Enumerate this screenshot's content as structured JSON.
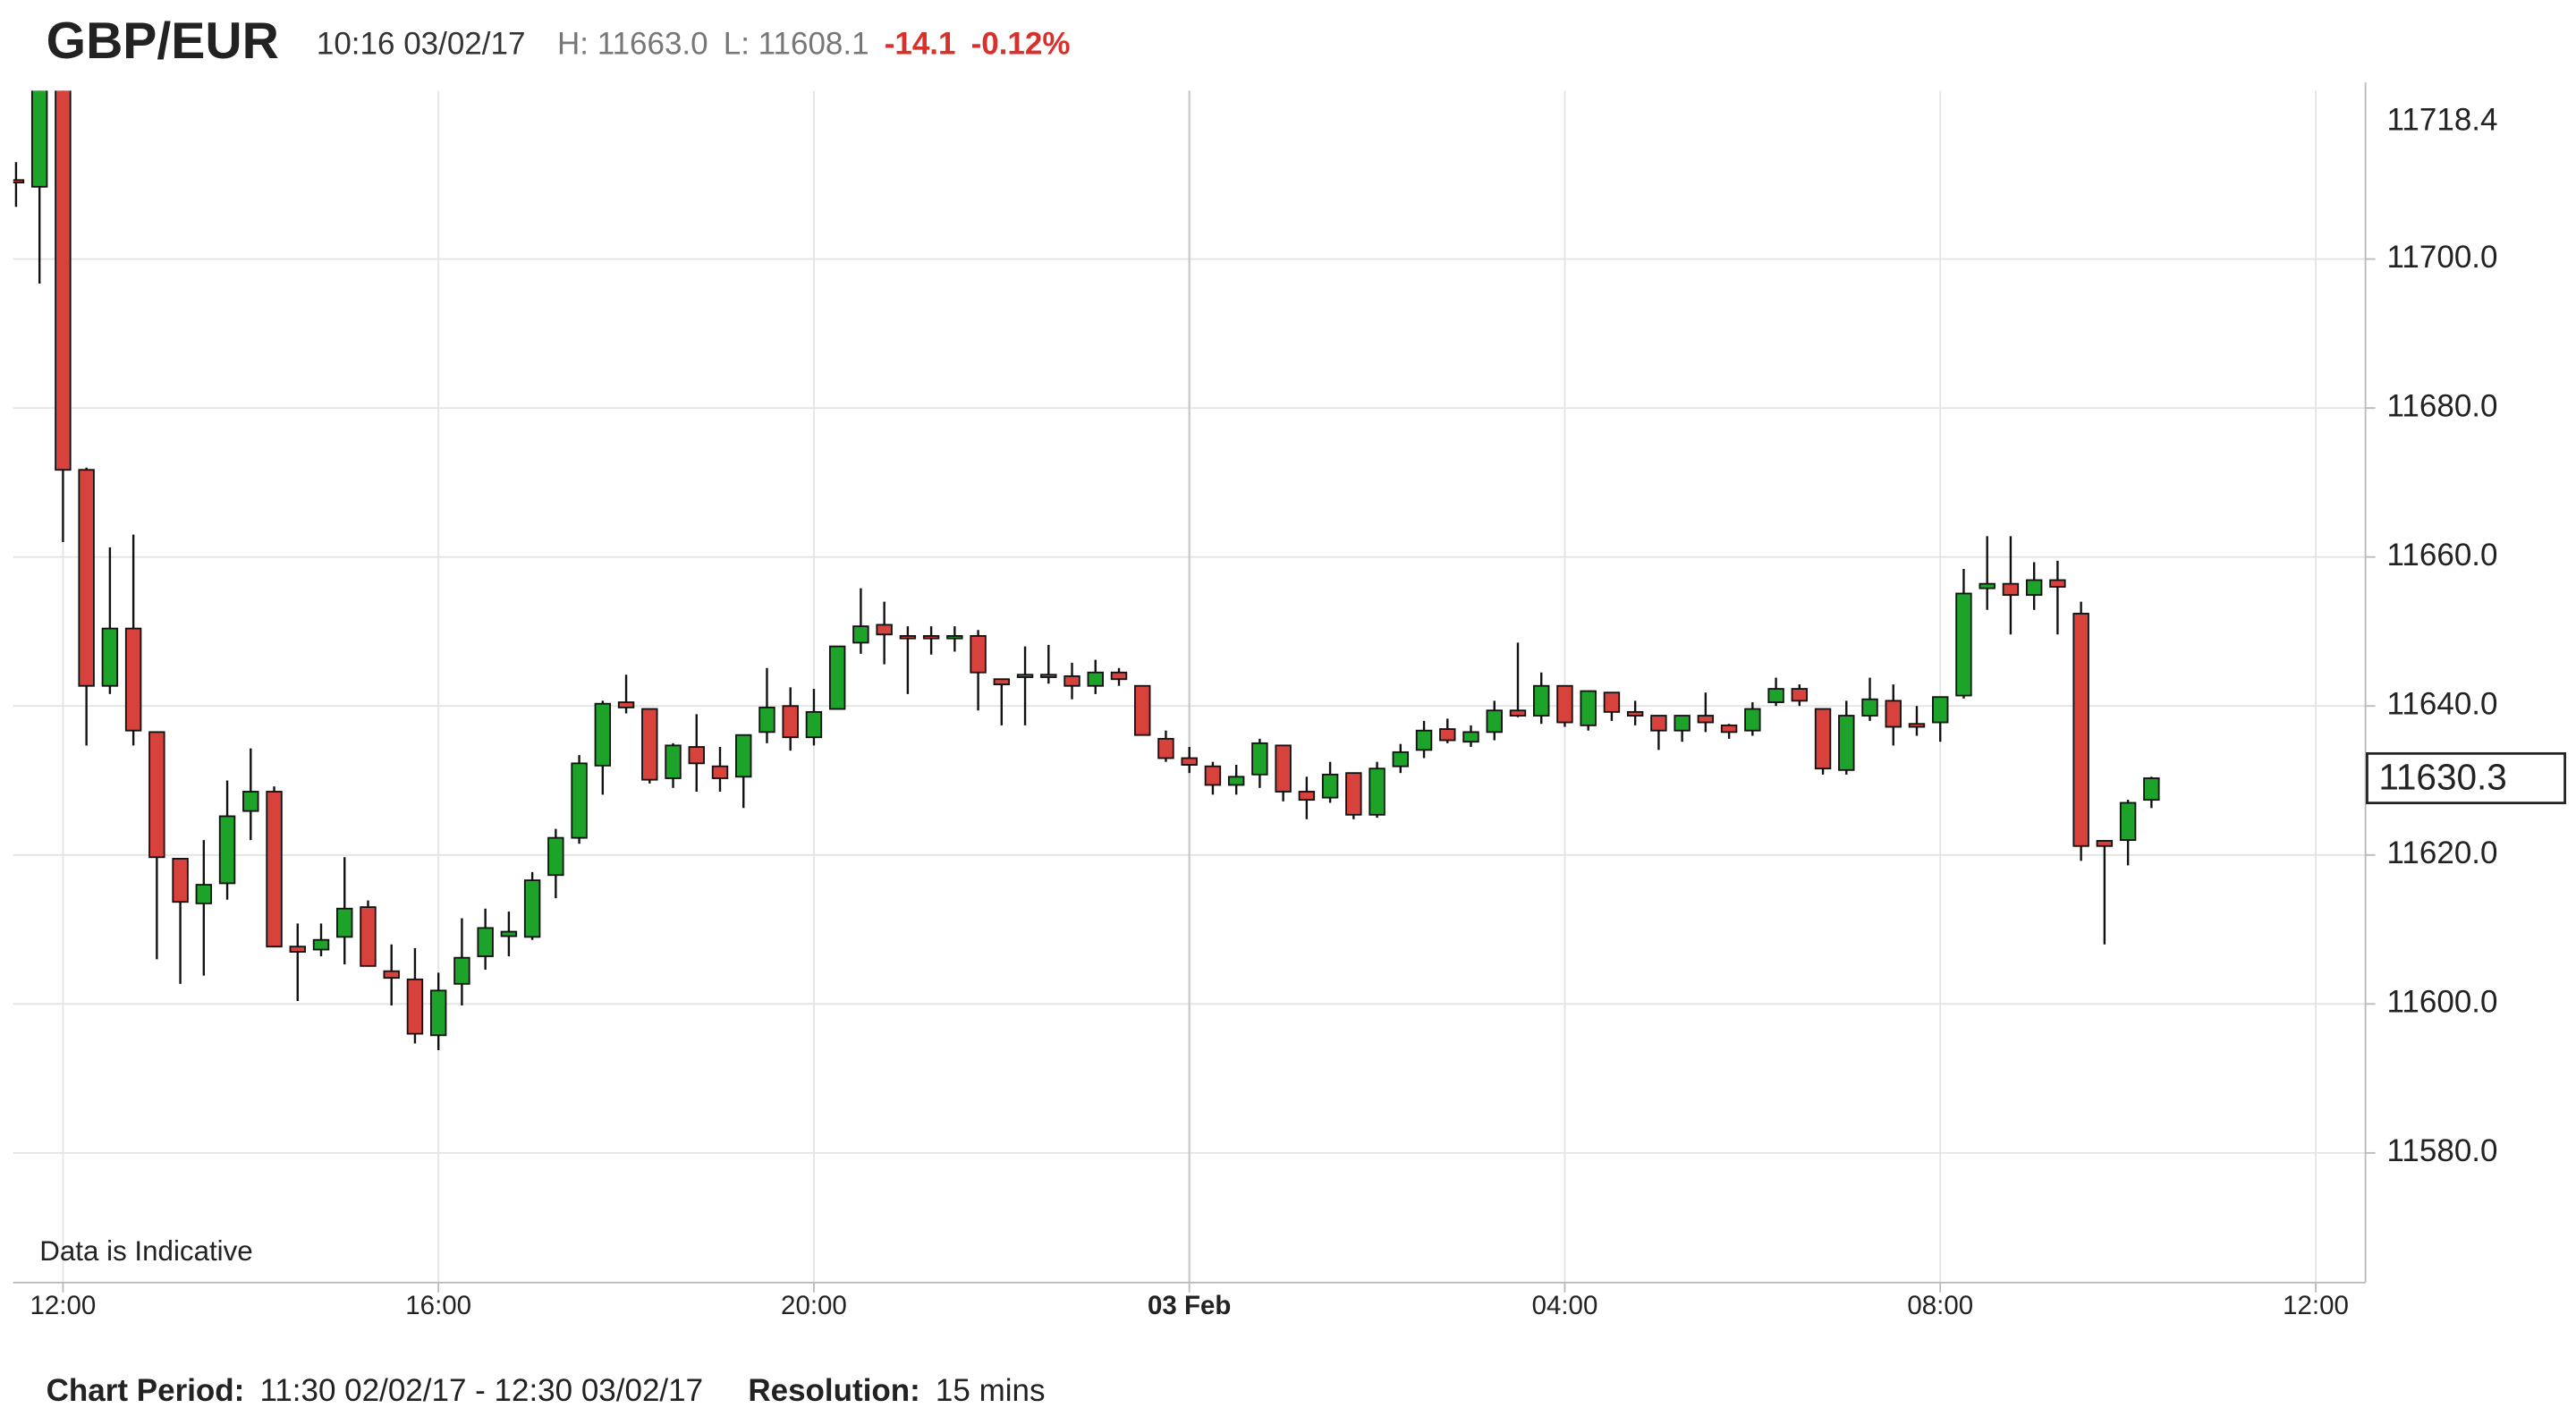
{
  "chart_data": {
    "type": "candlestick",
    "title": "GBP/EUR",
    "timestamp": "10:16 03/02/17",
    "high_text": "H: 11663.0",
    "low_text": "L: 11608.1",
    "change": "-14.1",
    "change_percent": "-0.12%",
    "annotation": "Data is Indicative",
    "footer": {
      "period_label": "Chart Period:",
      "period": "11:30 02/02/17 - 12:30 03/02/17",
      "resolution_label": "Resolution:",
      "resolution": "15 mins"
    },
    "last_price": 11630.3,
    "top_label": 11718.4,
    "up_color": "#1ea32a",
    "down_color": "#d8423c",
    "grid": true,
    "xlim": [
      11.47,
      36.53
    ],
    "xticks": [
      {
        "value": 12,
        "label": "12:00"
      },
      {
        "value": 16,
        "label": "16:00"
      },
      {
        "value": 20,
        "label": "20:00"
      },
      {
        "value": 24,
        "label": "03 Feb"
      },
      {
        "value": 28,
        "label": "04:00"
      },
      {
        "value": 32,
        "label": "08:00"
      },
      {
        "value": 36,
        "label": "12:00"
      }
    ],
    "ylim": [
      11562.6,
      11722.6
    ],
    "yticks": [
      {
        "value": 11580,
        "label": "11580.0"
      },
      {
        "value": 11600,
        "label": "11600.0"
      },
      {
        "value": 11620,
        "label": "11620.0"
      },
      {
        "value": 11640,
        "label": "11640.0"
      },
      {
        "value": 11660,
        "label": "11660.0"
      },
      {
        "value": 11680,
        "label": "11680.0"
      },
      {
        "value": 11700,
        "label": "11700.0"
      }
    ],
    "x": [
      11.5,
      11.75,
      12,
      12.25,
      12.5,
      12.75,
      13,
      13.25,
      13.5,
      13.75,
      14,
      14.25,
      14.5,
      14.75,
      15,
      15.25,
      15.5,
      15.75,
      16,
      16.25,
      16.5,
      16.75,
      17,
      17.25,
      17.5,
      17.75,
      18,
      18.25,
      18.5,
      18.75,
      19,
      19.25,
      19.5,
      19.75,
      20,
      20.25,
      20.5,
      20.75,
      21,
      21.25,
      21.5,
      21.75,
      22,
      22.25,
      22.5,
      22.75,
      23,
      23.25,
      23.5,
      23.75,
      24,
      24.25,
      24.5,
      24.75,
      25,
      25.25,
      25.5,
      25.75,
      26,
      26.25,
      26.5,
      26.75,
      27,
      27.25,
      27.5,
      27.75,
      28,
      28.25,
      28.5,
      28.75,
      29,
      29.25,
      29.5,
      29.75,
      30,
      30.25,
      30.5,
      30.75,
      31,
      31.25,
      31.5,
      31.75,
      32,
      32.25,
      32.5,
      32.75,
      33,
      33.25,
      33.5,
      33.75,
      34,
      34.25
    ],
    "open": [
      11710.6,
      11709.7,
      11727,
      11671.7,
      11642.7,
      11650.4,
      11636.5,
      11619.5,
      11613.5,
      11616.2,
      11625.9,
      11628.5,
      11607.7,
      11607.3,
      11609,
      11613,
      11604.4,
      11603.3,
      11595.8,
      11602.7,
      11606.4,
      11609.1,
      11609,
      11617.3,
      11622.3,
      11632,
      11640.5,
      11639.6,
      11630.3,
      11634.5,
      11631.9,
      11630.5,
      11636.5,
      11640,
      11635.8,
      11639.6,
      11648.5,
      11650.9,
      11649.4,
      11649.4,
      11649.2,
      11649.4,
      11643.6,
      11644.2,
      11644.2,
      11644,
      11642.7,
      11644.5,
      11642.7,
      11635.6,
      11633,
      11631.9,
      11629.4,
      11630.8,
      11634.7,
      11628.5,
      11627.7,
      11631,
      11625.4,
      11631.9,
      11634.1,
      11636.9,
      11635.2,
      11636.5,
      11639.4,
      11638.7,
      11642.7,
      11637.4,
      11641.8,
      11639.2,
      11638.7,
      11636.7,
      11638.7,
      11637.4,
      11636.7,
      11640.5,
      11642.3,
      11639.6,
      11631.4,
      11638.7,
      11640.7,
      11637.6,
      11637.8,
      11641.4,
      11655.8,
      11656.4,
      11654.9,
      11656.9,
      11652.4,
      11621.9,
      11622,
      11627.4
    ],
    "high": [
      11713,
      11730,
      11730,
      11672,
      11661.3,
      11663,
      11636.5,
      11619.5,
      11622,
      11630,
      11634.3,
      11629.2,
      11610.8,
      11610.8,
      11619.7,
      11613.9,
      11608,
      11607.5,
      11604.2,
      11611.5,
      11612.8,
      11612.4,
      11617.7,
      11623.5,
      11633.4,
      11640.7,
      11644.2,
      11639.6,
      11635,
      11638.9,
      11634.5,
      11636.1,
      11645.1,
      11642.5,
      11642.3,
      11648,
      11655.8,
      11654,
      11650.7,
      11650.7,
      11650.7,
      11650.2,
      11643.6,
      11648,
      11648.2,
      11645.8,
      11646.2,
      11645.1,
      11642.7,
      11636.7,
      11634.5,
      11632.5,
      11632.1,
      11635.6,
      11634.7,
      11630.5,
      11632.5,
      11631,
      11632.5,
      11634.9,
      11638,
      11638.3,
      11637.4,
      11640.7,
      11648.5,
      11644.5,
      11642.7,
      11642,
      11641.8,
      11640.7,
      11638.7,
      11638.7,
      11641.8,
      11637.6,
      11640.5,
      11643.8,
      11642.9,
      11639.6,
      11640.7,
      11643.8,
      11642.9,
      11640,
      11641.2,
      11658.4,
      11662.8,
      11662.8,
      11659.3,
      11659.5,
      11654,
      11621.9,
      11627.4,
      11630.5
    ],
    "low": [
      11707,
      11696.7,
      11662,
      11634.7,
      11641.6,
      11634.7,
      11606,
      11602.7,
      11603.8,
      11614,
      11622,
      11607.7,
      11600.4,
      11606.4,
      11605.3,
      11605,
      11599.8,
      11594.7,
      11593.8,
      11599.8,
      11604.6,
      11606.4,
      11608.6,
      11614.2,
      11621.5,
      11628.1,
      11639,
      11629.6,
      11629,
      11628.5,
      11628.5,
      11626.3,
      11635,
      11634,
      11634.7,
      11639.6,
      11647,
      11645.6,
      11641.6,
      11646.9,
      11647.3,
      11639.4,
      11637.4,
      11637.4,
      11643,
      11640.9,
      11641.6,
      11642.7,
      11636.1,
      11632.5,
      11631,
      11628.1,
      11628.1,
      11629,
      11627.2,
      11624.8,
      11627,
      11624.8,
      11625,
      11631,
      11633,
      11635,
      11634.5,
      11635.4,
      11638.5,
      11637.6,
      11637.2,
      11636.7,
      11638,
      11637.4,
      11634.1,
      11635.2,
      11636.5,
      11635.6,
      11636,
      11640,
      11640,
      11630.8,
      11630.8,
      11638,
      11634.7,
      11636,
      11635.2,
      11641,
      11652.9,
      11649.6,
      11652.9,
      11649.6,
      11619.2,
      11608,
      11618.6,
      11626.3
    ],
    "close": [
      11710.3,
      11727,
      11671.7,
      11642.7,
      11650.4,
      11636.7,
      11619.7,
      11613.7,
      11616,
      11625.2,
      11628.5,
      11607.7,
      11607,
      11608.6,
      11612.8,
      11605.1,
      11603.5,
      11596,
      11601.8,
      11606.2,
      11610.2,
      11609.7,
      11616.6,
      11622.3,
      11632.3,
      11640.3,
      11639.8,
      11630.1,
      11634.7,
      11632.3,
      11630.3,
      11636.1,
      11639.8,
      11635.8,
      11639.2,
      11648,
      11650.7,
      11649.6,
      11649.2,
      11649.2,
      11649.4,
      11644.5,
      11642.9,
      11644.2,
      11644,
      11642.7,
      11644.5,
      11643.6,
      11636.1,
      11633,
      11632.1,
      11629.4,
      11630.5,
      11635,
      11628.5,
      11627.4,
      11630.8,
      11625.4,
      11631.6,
      11633.8,
      11636.7,
      11635.4,
      11636.5,
      11639.4,
      11638.7,
      11642.7,
      11637.8,
      11642,
      11639.2,
      11638.7,
      11636.7,
      11638.7,
      11637.8,
      11636.5,
      11639.6,
      11642.3,
      11640.7,
      11631.6,
      11638.7,
      11640.9,
      11637.2,
      11637.2,
      11641.2,
      11655.1,
      11656.4,
      11654.9,
      11656.9,
      11656,
      11621.2,
      11621.2,
      11627,
      11630.3
    ]
  }
}
